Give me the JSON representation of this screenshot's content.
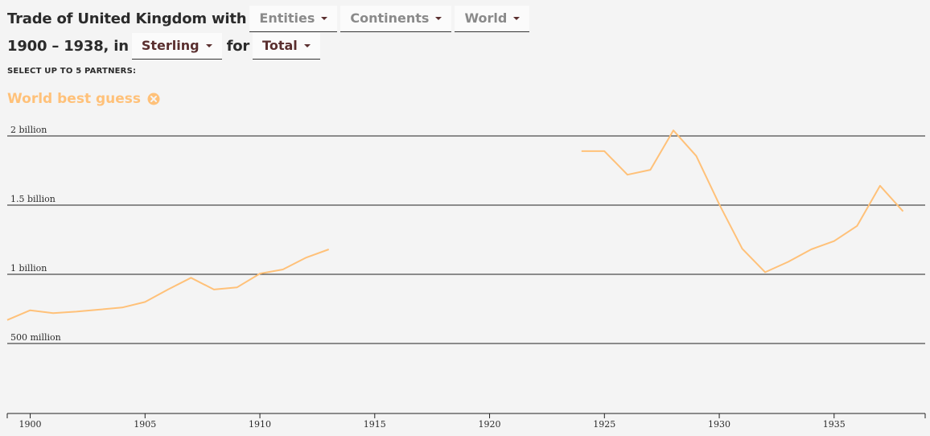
{
  "header": {
    "title_part1": "Trade of United Kingdom with",
    "dropdown_entities": "Entities",
    "dropdown_continents": "Continents",
    "dropdown_world": "World",
    "years": "1900 – 1938, in",
    "dropdown_currency": "Sterling",
    "for_text": "for",
    "dropdown_flow": "Total"
  },
  "select_label": "SELECT UP TO 5 PARTNERS:",
  "partner": {
    "name": "World best guess",
    "color": "#ffc179",
    "remove_icon": "close-circle-icon"
  },
  "chart_data": {
    "type": "line",
    "x_ticks": [
      1900,
      1905,
      1910,
      1915,
      1920,
      1925,
      1930,
      1935
    ],
    "y_ticks": [
      {
        "value": 500000000,
        "label": "500 million"
      },
      {
        "value": 1000000000,
        "label": "1 billion"
      },
      {
        "value": 1500000000,
        "label": "1.5 billion"
      },
      {
        "value": 2000000000,
        "label": "2 billion"
      }
    ],
    "xlim": [
      1899,
      1939.3
    ],
    "ylim": [
      0,
      2250000000
    ],
    "series": [
      {
        "name": "World best guess",
        "color": "#ffc179",
        "segments": [
          [
            [
              1899,
              670000000
            ],
            [
              1900,
              740000000
            ],
            [
              1901,
              720000000
            ],
            [
              1902,
              730000000
            ],
            [
              1903,
              745000000
            ],
            [
              1904,
              760000000
            ],
            [
              1905,
              800000000
            ],
            [
              1906,
              890000000
            ],
            [
              1907,
              975000000
            ],
            [
              1908,
              890000000
            ],
            [
              1909,
              905000000
            ],
            [
              1910,
              1005000000
            ],
            [
              1911,
              1035000000
            ],
            [
              1912,
              1120000000
            ],
            [
              1913,
              1180000000
            ]
          ],
          [
            [
              1924,
              1890000000
            ],
            [
              1925,
              1890000000
            ],
            [
              1926,
              1720000000
            ],
            [
              1927,
              1755000000
            ],
            [
              1928,
              2040000000
            ],
            [
              1929,
              1855000000
            ],
            [
              1930,
              1505000000
            ],
            [
              1931,
              1185000000
            ],
            [
              1932,
              1015000000
            ],
            [
              1933,
              1090000000
            ],
            [
              1934,
              1180000000
            ],
            [
              1935,
              1240000000
            ],
            [
              1936,
              1350000000
            ],
            [
              1937,
              1640000000
            ],
            [
              1938,
              1455000000
            ]
          ]
        ]
      }
    ]
  }
}
